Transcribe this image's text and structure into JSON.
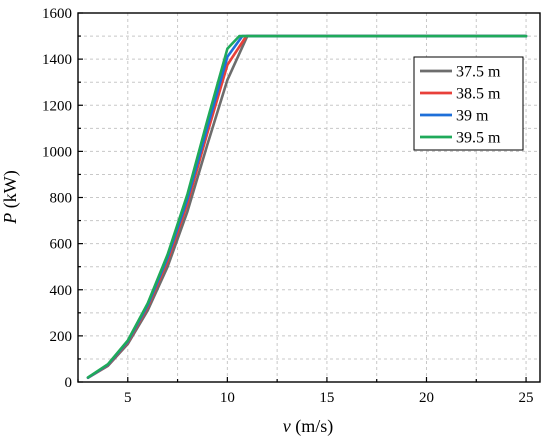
{
  "chart_data": {
    "type": "line",
    "xlabel_var": "v",
    "xlabel_unit": " (m/s)",
    "ylabel_var": "P",
    "ylabel_unit": " (kW)",
    "xlim": [
      2.5,
      25.7
    ],
    "ylim": [
      0,
      1600
    ],
    "x_ticks": [
      5,
      10,
      15,
      20,
      25
    ],
    "y_ticks": [
      0,
      200,
      400,
      600,
      800,
      1000,
      1200,
      1400,
      1600
    ],
    "grid": true,
    "legend_placement": "top-right",
    "series": [
      {
        "name": "37.5 m",
        "color": "#6d6d6d",
        "points": [
          [
            3,
            18
          ],
          [
            4,
            70
          ],
          [
            5,
            165
          ],
          [
            6,
            310
          ],
          [
            7,
            500
          ],
          [
            8,
            740
          ],
          [
            9,
            1030
          ],
          [
            10,
            1310
          ],
          [
            11,
            1500
          ],
          [
            25,
            1500
          ]
        ]
      },
      {
        "name": "38.5 m",
        "color": "#e8403a",
        "points": [
          [
            3,
            19
          ],
          [
            4,
            73
          ],
          [
            5,
            172
          ],
          [
            6,
            325
          ],
          [
            7,
            525
          ],
          [
            8,
            775
          ],
          [
            9,
            1080
          ],
          [
            10,
            1375
          ],
          [
            10.95,
            1500
          ],
          [
            25,
            1500
          ]
        ]
      },
      {
        "name": "39 m",
        "color": "#1e6fd9",
        "points": [
          [
            3,
            19
          ],
          [
            4,
            75
          ],
          [
            5,
            176
          ],
          [
            6,
            333
          ],
          [
            7,
            540
          ],
          [
            8,
            795
          ],
          [
            9,
            1105
          ],
          [
            10,
            1410
          ],
          [
            10.75,
            1500
          ],
          [
            25,
            1500
          ]
        ]
      },
      {
        "name": "39.5 m",
        "color": "#1faa5a",
        "points": [
          [
            3,
            20
          ],
          [
            4,
            77
          ],
          [
            5,
            180
          ],
          [
            6,
            341
          ],
          [
            7,
            553
          ],
          [
            8,
            815
          ],
          [
            9,
            1135
          ],
          [
            10,
            1445
          ],
          [
            10.6,
            1500
          ],
          [
            25,
            1500
          ]
        ]
      }
    ]
  }
}
